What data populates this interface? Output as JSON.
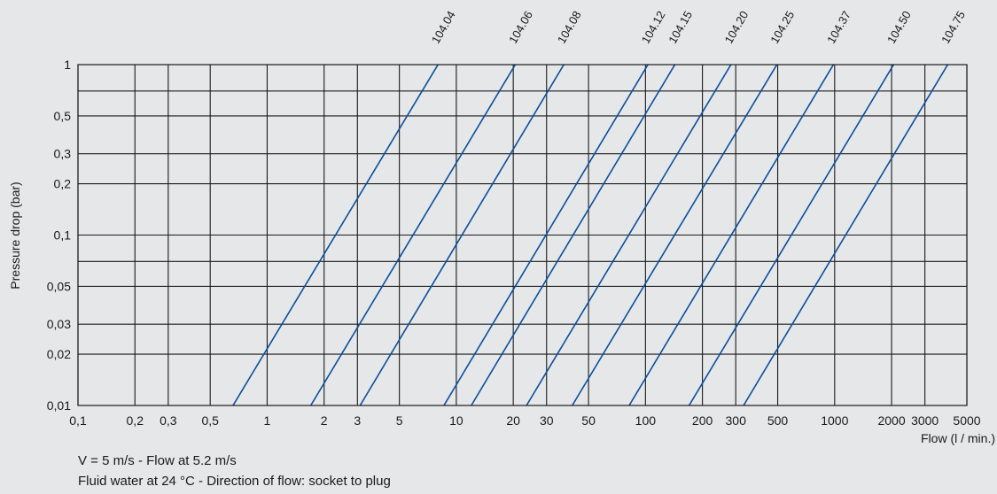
{
  "chart_data": {
    "type": "line",
    "xscale": "log",
    "yscale": "log",
    "xlim": [
      0.1,
      5000
    ],
    "ylim": [
      0.01,
      1
    ],
    "xlabel": "Flow (l / min.)",
    "ylabel": "Pressure drop (bar)",
    "grid": true,
    "x_ticks": [
      0.1,
      0.2,
      0.3,
      0.5,
      1,
      2,
      3,
      5,
      10,
      20,
      30,
      50,
      100,
      200,
      300,
      500,
      1000,
      2000,
      3000,
      5000
    ],
    "x_tick_labels": [
      "0,1",
      "0,2",
      "0,3",
      "0,5",
      "1",
      "2",
      "3",
      "5",
      "10",
      "20",
      "30",
      "50",
      "100",
      "200",
      "300",
      "500",
      "1000",
      "2000",
      "3000",
      "5000"
    ],
    "y_ticks": [
      0.01,
      0.02,
      0.03,
      0.05,
      0.1,
      0.2,
      0.3,
      0.5,
      1
    ],
    "y_tick_labels": [
      "0,01",
      "0,02",
      "0,03",
      "0,05",
      "0,1",
      "0,2",
      "0,3",
      "0,5",
      "1"
    ],
    "series": [
      {
        "name": "104.04",
        "x": [
          0.66,
          8.0
        ],
        "y": [
          0.01,
          1
        ]
      },
      {
        "name": "104.06",
        "x": [
          1.7,
          20.5
        ],
        "y": [
          0.01,
          1
        ]
      },
      {
        "name": "104.08",
        "x": [
          3.1,
          37.0
        ],
        "y": [
          0.01,
          1
        ]
      },
      {
        "name": "104.12",
        "x": [
          8.6,
          103.0
        ],
        "y": [
          0.01,
          1
        ]
      },
      {
        "name": "104.15",
        "x": [
          12.0,
          143.0
        ],
        "y": [
          0.01,
          1
        ]
      },
      {
        "name": "104.20",
        "x": [
          23.5,
          283.0
        ],
        "y": [
          0.01,
          1
        ]
      },
      {
        "name": "104.25",
        "x": [
          41.0,
          495.0
        ],
        "y": [
          0.01,
          1
        ]
      },
      {
        "name": "104.37",
        "x": [
          82.0,
          985.0
        ],
        "y": [
          0.01,
          1
        ]
      },
      {
        "name": "104.50",
        "x": [
          170.0,
          2050.0
        ],
        "y": [
          0.01,
          1
        ]
      },
      {
        "name": "104.75",
        "x": [
          330.0,
          3960.0
        ],
        "y": [
          0.01,
          1
        ]
      }
    ],
    "line_color": "#0a4f9c"
  },
  "notes": [
    "V = 5 m/s - Flow at 5.2 m/s",
    "Fluid water at 24 °C - Direction of flow: socket to plug"
  ]
}
